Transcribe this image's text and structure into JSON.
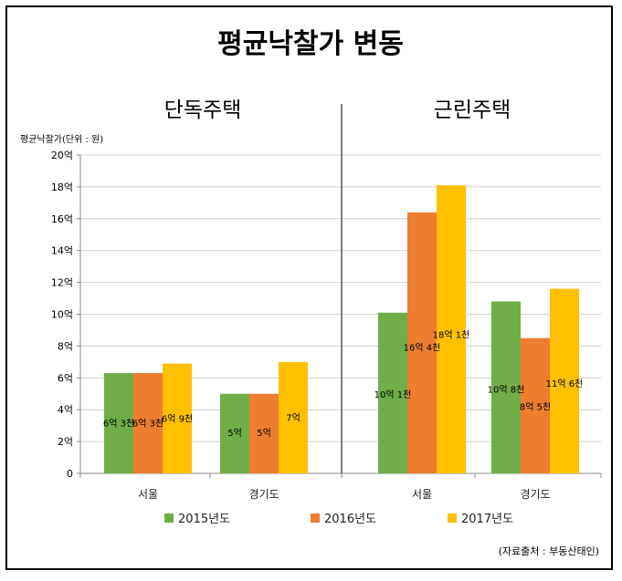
{
  "chart_data": {
    "type": "bar",
    "title": "평균낙찰가 변동",
    "ylabel": "평균낙찰가(단위 : 원)",
    "ylim": [
      0,
      20
    ],
    "yticks": [
      "0",
      "2억",
      "4억",
      "6억",
      "8억",
      "10억",
      "12억",
      "14억",
      "16억",
      "18억",
      "20억"
    ],
    "grid": true,
    "legend_position": "bottom",
    "colors": [
      "#70AD47",
      "#ED7D31",
      "#FFC000"
    ],
    "series_names": [
      "2015년도",
      "2016년도",
      "2017년도"
    ],
    "panels": [
      {
        "title": "단독주택",
        "categories": [
          "서울",
          "경기도"
        ],
        "series": [
          {
            "name": "2015년도",
            "values": [
              6.3,
              5.0
            ],
            "labels": [
              "6억 3천",
              "5억"
            ]
          },
          {
            "name": "2016년도",
            "values": [
              6.3,
              5.0
            ],
            "labels": [
              "6억 3천",
              "5억"
            ]
          },
          {
            "name": "2017년도",
            "values": [
              6.9,
              7.0
            ],
            "labels": [
              "6억 9천",
              "7억"
            ]
          }
        ]
      },
      {
        "title": "근린주택",
        "categories": [
          "서울",
          "경기도"
        ],
        "series": [
          {
            "name": "2015년도",
            "values": [
              10.1,
              10.8
            ],
            "labels": [
              "10억 1천",
              "10억 8천"
            ]
          },
          {
            "name": "2016년도",
            "values": [
              16.4,
              8.5
            ],
            "labels": [
              "16억 4천",
              "8억 5천"
            ]
          },
          {
            "name": "2017년도",
            "values": [
              18.1,
              11.6
            ],
            "labels": [
              "18억 1천",
              "11억 6천"
            ]
          }
        ]
      }
    ],
    "source": "(자료출처 : 부동산태인)"
  }
}
